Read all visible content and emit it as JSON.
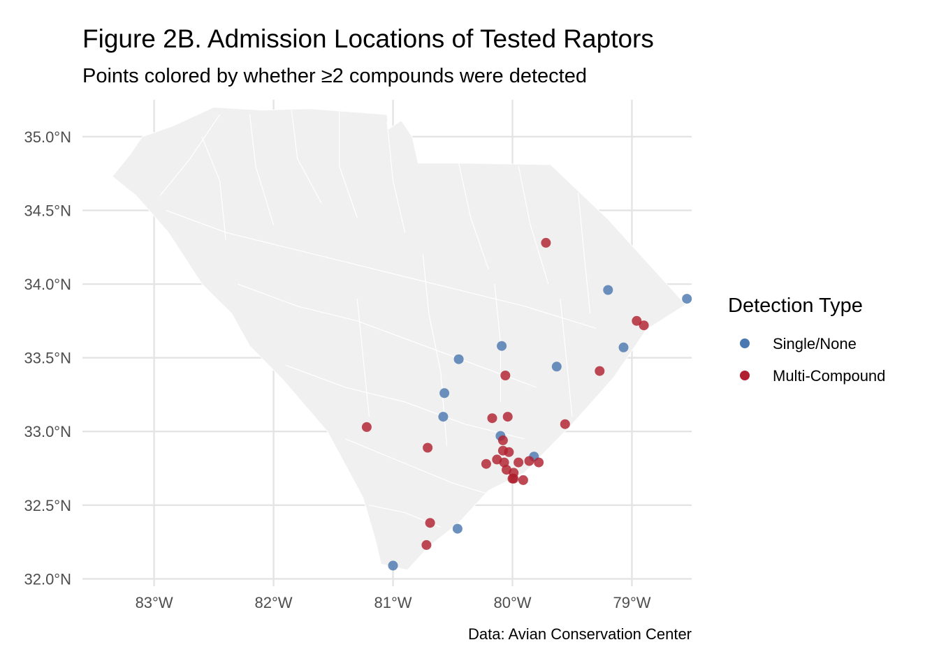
{
  "title": "Figure 2B. Admission Locations of Tested Raptors",
  "subtitle": "Points colored by whether ≥2 compounds were detected",
  "caption": "Data: Avian Conservation Center",
  "legend": {
    "title": "Detection Type",
    "items": [
      {
        "key": "single",
        "label": "Single/None",
        "color": "#4a78b0"
      },
      {
        "key": "multi",
        "label": "Multi-Compound",
        "color": "#b0202e"
      }
    ]
  },
  "chart_data": {
    "type": "scatter",
    "xlim": [
      -83.6,
      -78.5
    ],
    "ylim": [
      31.95,
      35.25
    ],
    "x_ticks": [
      {
        "value": -83,
        "label": "83°W"
      },
      {
        "value": -82,
        "label": "82°W"
      },
      {
        "value": -81,
        "label": "81°W"
      },
      {
        "value": -80,
        "label": "80°W"
      },
      {
        "value": -79,
        "label": "79°W"
      }
    ],
    "y_ticks": [
      {
        "value": 32.0,
        "label": "32.0°N"
      },
      {
        "value": 32.5,
        "label": "32.5°N"
      },
      {
        "value": 33.0,
        "label": "33.0°N"
      },
      {
        "value": 33.5,
        "label": "33.5°N"
      },
      {
        "value": 34.0,
        "label": "34.0°N"
      },
      {
        "value": 34.5,
        "label": "34.5°N"
      },
      {
        "value": 35.0,
        "label": "35.0°N"
      }
    ],
    "grid": true,
    "legend_position": "right",
    "state_outline": [
      [
        -83.35,
        34.73
      ],
      [
        -83.2,
        34.88
      ],
      [
        -83.1,
        35.0
      ],
      [
        -82.85,
        35.07
      ],
      [
        -82.5,
        35.2
      ],
      [
        -82.1,
        35.18
      ],
      [
        -81.7,
        35.19
      ],
      [
        -81.05,
        35.15
      ],
      [
        -81.04,
        35.05
      ],
      [
        -80.93,
        35.11
      ],
      [
        -80.84,
        35.0
      ],
      [
        -80.79,
        34.82
      ],
      [
        -80.41,
        34.82
      ],
      [
        -79.68,
        34.81
      ],
      [
        -79.2,
        34.44
      ],
      [
        -78.55,
        33.86
      ],
      [
        -78.88,
        33.69
      ],
      [
        -79.15,
        33.37
      ],
      [
        -79.28,
        33.25
      ],
      [
        -79.5,
        33.05
      ],
      [
        -79.9,
        32.72
      ],
      [
        -80.2,
        32.6
      ],
      [
        -80.45,
        32.38
      ],
      [
        -80.7,
        32.22
      ],
      [
        -80.88,
        32.06
      ],
      [
        -81.1,
        32.1
      ],
      [
        -81.15,
        32.27
      ],
      [
        -81.25,
        32.55
      ],
      [
        -81.45,
        32.85
      ],
      [
        -81.55,
        33.0
      ],
      [
        -81.92,
        33.35
      ],
      [
        -82.2,
        33.58
      ],
      [
        -82.35,
        33.8
      ],
      [
        -82.6,
        34.0
      ],
      [
        -82.88,
        34.35
      ],
      [
        -83.15,
        34.6
      ],
      [
        -83.35,
        34.73
      ]
    ],
    "series": [
      {
        "name": "Single/None",
        "points": [
          {
            "x": -79.2,
            "y": 33.96
          },
          {
            "x": -78.54,
            "y": 33.9
          },
          {
            "x": -80.09,
            "y": 33.58
          },
          {
            "x": -79.07,
            "y": 33.57
          },
          {
            "x": -80.45,
            "y": 33.49
          },
          {
            "x": -79.63,
            "y": 33.44
          },
          {
            "x": -80.57,
            "y": 33.26
          },
          {
            "x": -80.58,
            "y": 33.1
          },
          {
            "x": -80.1,
            "y": 32.97
          },
          {
            "x": -79.82,
            "y": 32.83
          },
          {
            "x": -80.46,
            "y": 32.34
          },
          {
            "x": -81.0,
            "y": 32.09
          }
        ]
      },
      {
        "name": "Multi-Compound",
        "points": [
          {
            "x": -79.72,
            "y": 34.28
          },
          {
            "x": -78.96,
            "y": 33.75
          },
          {
            "x": -78.9,
            "y": 33.72
          },
          {
            "x": -79.27,
            "y": 33.41
          },
          {
            "x": -80.06,
            "y": 33.38
          },
          {
            "x": -80.17,
            "y": 33.09
          },
          {
            "x": -80.04,
            "y": 33.1
          },
          {
            "x": -79.56,
            "y": 33.05
          },
          {
            "x": -81.22,
            "y": 33.03
          },
          {
            "x": -80.08,
            "y": 32.94
          },
          {
            "x": -80.71,
            "y": 32.89
          },
          {
            "x": -80.08,
            "y": 32.87
          },
          {
            "x": -80.03,
            "y": 32.86
          },
          {
            "x": -80.13,
            "y": 32.81
          },
          {
            "x": -80.07,
            "y": 32.79
          },
          {
            "x": -80.22,
            "y": 32.78
          },
          {
            "x": -79.95,
            "y": 32.79
          },
          {
            "x": -79.86,
            "y": 32.8
          },
          {
            "x": -79.78,
            "y": 32.79
          },
          {
            "x": -80.05,
            "y": 32.74
          },
          {
            "x": -79.99,
            "y": 32.72
          },
          {
            "x": -80.0,
            "y": 32.68
          },
          {
            "x": -79.99,
            "y": 32.68
          },
          {
            "x": -79.91,
            "y": 32.67
          },
          {
            "x": -80.69,
            "y": 32.38
          },
          {
            "x": -80.72,
            "y": 32.23
          }
        ]
      }
    ]
  }
}
